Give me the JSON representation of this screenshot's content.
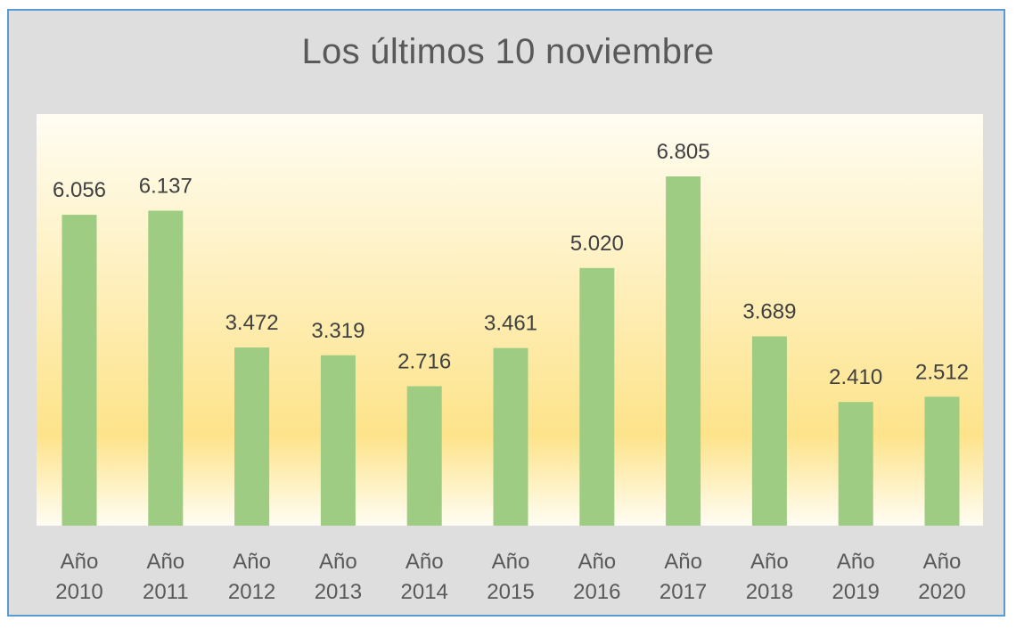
{
  "chart_data": {
    "type": "bar",
    "title": "Los últimos 10 noviembre",
    "categories": [
      [
        "Año",
        "2010"
      ],
      [
        "Año",
        "2011"
      ],
      [
        "Año",
        "2012"
      ],
      [
        "Año",
        "2013"
      ],
      [
        "Año",
        "2014"
      ],
      [
        "Año",
        "2015"
      ],
      [
        "Año",
        "2016"
      ],
      [
        "Año",
        "2017"
      ],
      [
        "Año",
        "2018"
      ],
      [
        "Año",
        "2019"
      ],
      [
        "Año",
        "2020"
      ]
    ],
    "values": [
      6056,
      6137,
      3472,
      3319,
      2716,
      3461,
      5020,
      6805,
      3689,
      2410,
      2512
    ],
    "data_labels": [
      "6.056",
      "6.137",
      "3.472",
      "3.319",
      "2.716",
      "3.461",
      "5.020",
      "6.805",
      "3.689",
      "2.410",
      "2.512"
    ],
    "xlabel": "",
    "ylabel": "",
    "grid": false,
    "legend": "none",
    "colors": {
      "bar": "#9dcc82",
      "plot_background_top": "#fffdf3",
      "plot_background_mid": "#fde38a",
      "chart_area": "#dedede",
      "border": "#5b9bd5"
    }
  }
}
